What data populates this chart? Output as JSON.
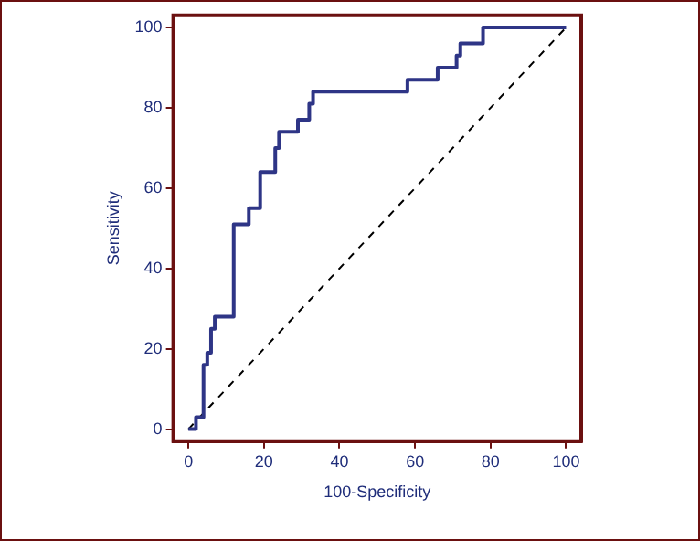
{
  "chart_data": {
    "type": "line",
    "xlabel": "100-Specificity",
    "ylabel": "Sensitivity",
    "xlim": [
      -4,
      104
    ],
    "ylim": [
      -3,
      103
    ],
    "xticks": [
      0,
      20,
      40,
      60,
      80,
      100
    ],
    "yticks": [
      0,
      20,
      40,
      60,
      80,
      100
    ],
    "grid": false,
    "legend": false,
    "marker": "none",
    "series": [
      {
        "color": "#2e3586",
        "line_style": "solid",
        "x": [
          0,
          2,
          2,
          4,
          4,
          5,
          5,
          6,
          6,
          7,
          7,
          12,
          12,
          16,
          16,
          19,
          19,
          23,
          23,
          24,
          24,
          29,
          29,
          32,
          32,
          33,
          33,
          58,
          58,
          66,
          66,
          71,
          71,
          72,
          72,
          78,
          78,
          100
        ],
        "values": [
          0,
          0,
          3,
          3,
          16,
          16,
          19,
          19,
          25,
          25,
          28,
          28,
          51,
          51,
          55,
          55,
          64,
          64,
          70,
          70,
          74,
          74,
          77,
          77,
          81,
          81,
          84,
          84,
          87,
          87,
          90,
          90,
          93,
          93,
          96,
          96,
          100,
          100
        ]
      },
      {
        "color": "#000000",
        "line_style": "dashed",
        "x": [
          0,
          100
        ],
        "values": [
          0,
          100
        ]
      }
    ]
  }
}
